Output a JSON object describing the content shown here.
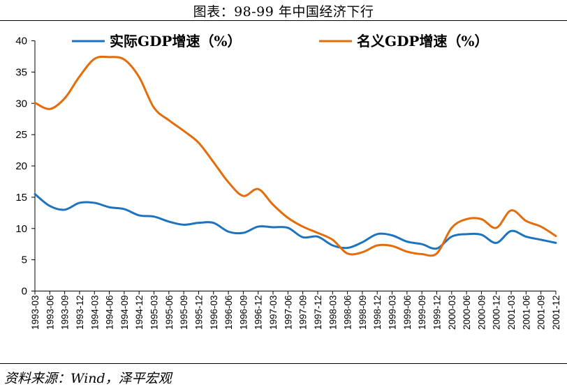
{
  "header": {
    "title": "图表：98-99 年中国经济下行"
  },
  "footer": {
    "source": "资料来源：Wind，泽平宏观"
  },
  "chart_data": {
    "type": "line",
    "title": "图表：98-99 年中国经济下行",
    "xlabel": "",
    "ylabel": "",
    "ylim": [
      0,
      40
    ],
    "yticks": [
      "0",
      "5",
      "10",
      "15",
      "20",
      "25",
      "30",
      "35",
      "40"
    ],
    "grid": false,
    "legend_position": "top",
    "categories": [
      "1993-03",
      "1993-06",
      "1993-09",
      "1993-12",
      "1994-03",
      "1994-06",
      "1994-09",
      "1994-12",
      "1995-03",
      "1995-06",
      "1995-09",
      "1995-12",
      "1996-03",
      "1996-06",
      "1996-09",
      "1996-12",
      "1997-03",
      "1997-06",
      "1997-09",
      "1997-12",
      "1998-03",
      "1998-06",
      "1998-09",
      "1998-12",
      "1999-03",
      "1999-06",
      "1999-09",
      "1999-12",
      "2000-03",
      "2000-06",
      "2000-09",
      "2000-12",
      "2001-03",
      "2001-06",
      "2001-09",
      "2001-12"
    ],
    "series": [
      {
        "name": "实际GDP增速（%）",
        "color": "#1e73be",
        "values": [
          15.5,
          13.6,
          13.0,
          14.1,
          14.1,
          13.4,
          13.1,
          12.1,
          11.9,
          11.1,
          10.6,
          10.9,
          10.9,
          9.5,
          9.3,
          10.3,
          10.2,
          10.1,
          8.6,
          8.7,
          7.3,
          6.9,
          7.8,
          9.1,
          8.9,
          7.9,
          7.5,
          6.8,
          8.7,
          9.1,
          9.0,
          7.7,
          9.6,
          8.7,
          8.2,
          7.7
        ]
      },
      {
        "name": "名义GDP增速（%）",
        "color": "#e46c0a",
        "values": [
          30.1,
          29.1,
          30.8,
          34.3,
          37.1,
          37.4,
          37.0,
          34.2,
          29.3,
          27.3,
          25.6,
          23.7,
          20.6,
          17.4,
          15.2,
          16.3,
          13.8,
          11.7,
          10.3,
          9.3,
          8.2,
          6.0,
          6.2,
          7.3,
          7.2,
          6.3,
          5.9,
          6.0,
          10.1,
          11.5,
          11.5,
          10.1,
          12.9,
          11.2,
          10.3,
          8.8
        ]
      }
    ]
  }
}
